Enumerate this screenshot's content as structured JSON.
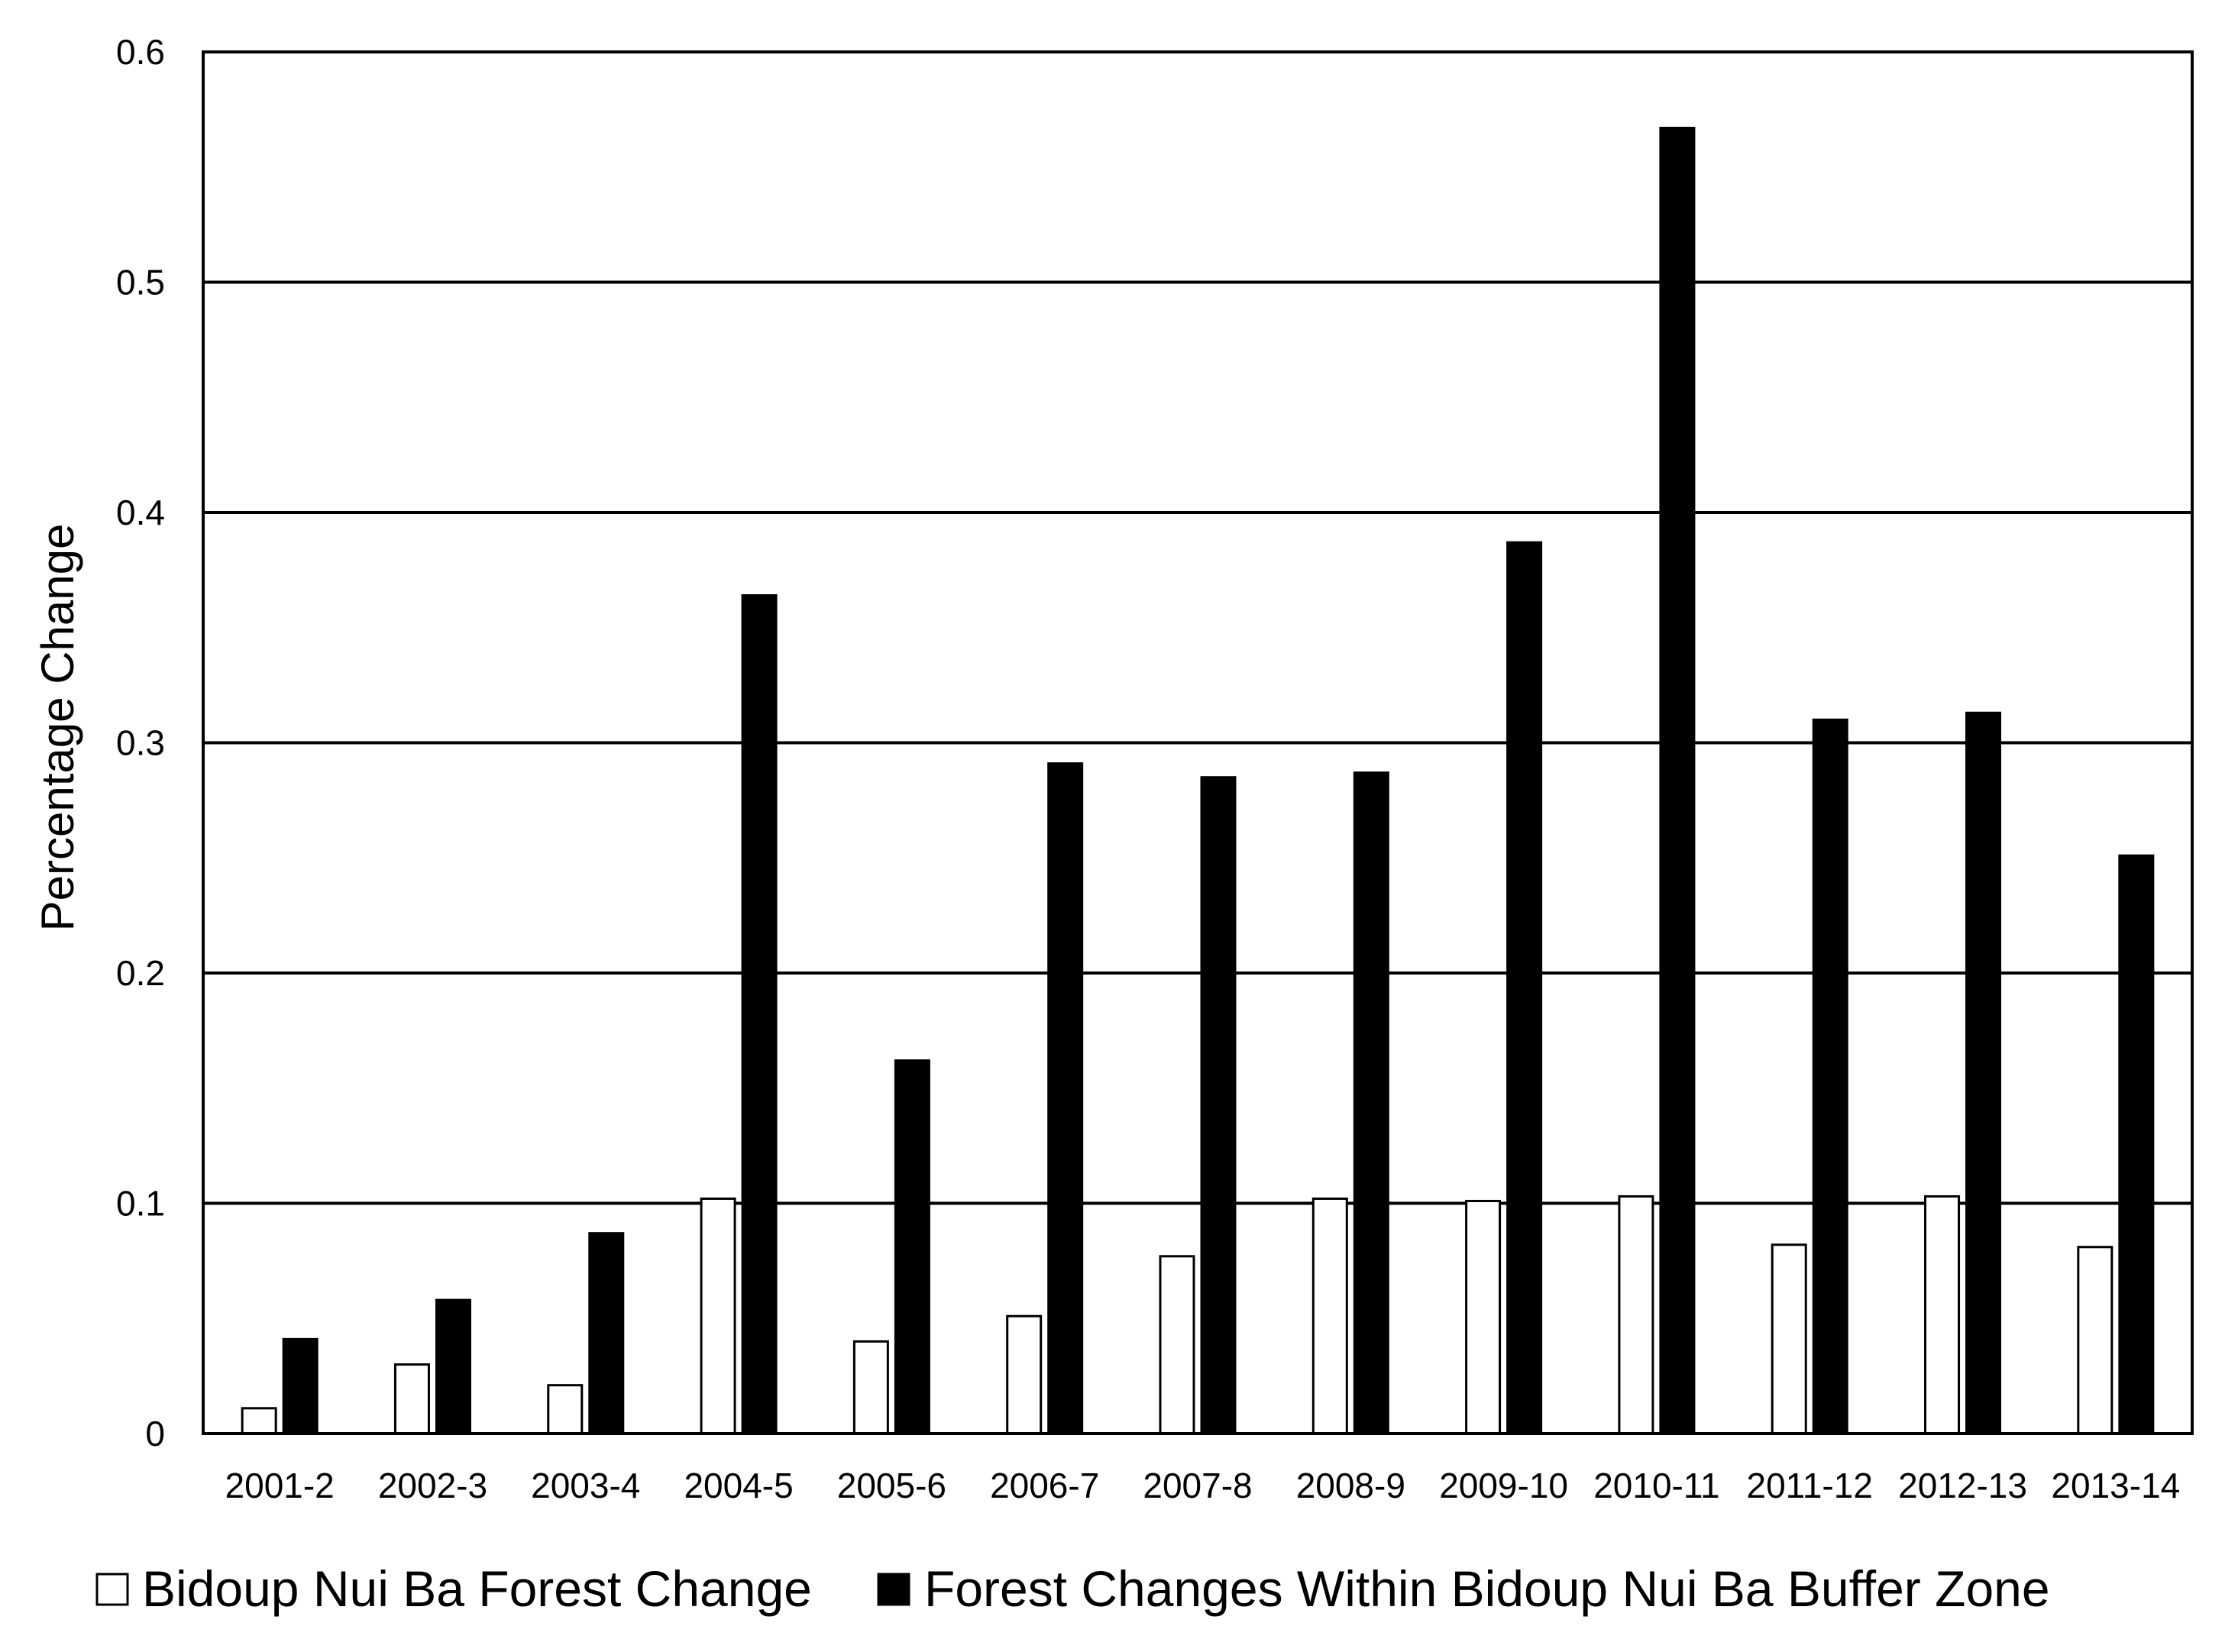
{
  "chart_data": {
    "type": "bar",
    "ylabel": "Percentage Change",
    "xlabel": "",
    "ylim": [
      0,
      0.6
    ],
    "yticks": [
      "0",
      "0.1",
      "0.2",
      "0.3",
      "0.4",
      "0.5",
      "0.6"
    ],
    "grid": true,
    "legend_position": "bottom",
    "categories": [
      "2001-2",
      "2002-3",
      "2003-4",
      "2004-5",
      "2005-6",
      "2006-7",
      "2007-8",
      "2008-9",
      "2009-10",
      "2010-11",
      "2011-12",
      "2012-13",
      "2013-14"
    ],
    "series": [
      {
        "name": "Bidoup Nui Ba Forest Change",
        "color": "#ffffff",
        "values": [
          0.011,
          0.03,
          0.021,
          0.102,
          0.04,
          0.051,
          0.077,
          0.102,
          0.101,
          0.103,
          0.082,
          0.103,
          0.081
        ]
      },
      {
        "name": "Forest Changes Within Bidoup Nui Ba Buffer Zone",
        "color": "#000000",
        "values": [
          0.041,
          0.058,
          0.087,
          0.364,
          0.162,
          0.291,
          0.285,
          0.287,
          0.387,
          0.567,
          0.31,
          0.313,
          0.251
        ]
      }
    ]
  }
}
